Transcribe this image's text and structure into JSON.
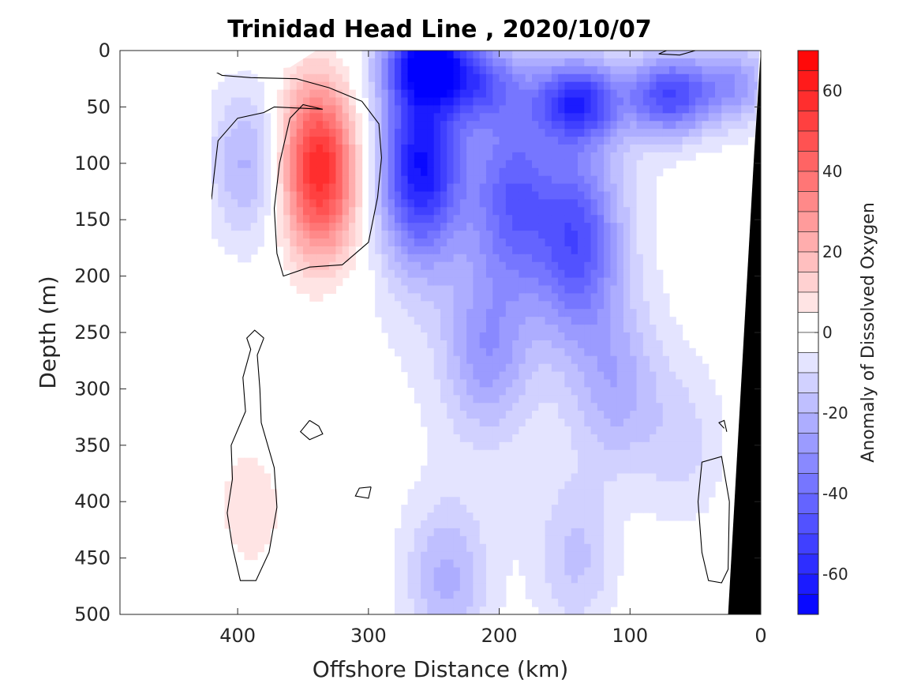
{
  "chart_data": {
    "type": "heatmap",
    "title": "Trinidad Head Line , 2020/10/07",
    "xlabel": "Offshore Distance (km)",
    "ylabel": "Depth (m)",
    "colorbar_label": "Anomaly of Dissolved Oxygen",
    "xlim": [
      490,
      0
    ],
    "ylim": [
      0,
      500
    ],
    "x_reversed": true,
    "y_reversed": true,
    "x_ticks": [
      400,
      300,
      200,
      100,
      0
    ],
    "y_ticks": [
      0,
      50,
      100,
      150,
      200,
      250,
      300,
      350,
      400,
      450,
      500
    ],
    "colorbar_range": [
      -70,
      70
    ],
    "colorbar_step": 5,
    "colorbar_ticks": [
      60,
      40,
      20,
      0,
      -20,
      -40,
      -60
    ],
    "colormap": {
      "negative": "#0000ff",
      "zero": "#ffffff",
      "positive": "#ff0000"
    },
    "data_extent_x": [
      420,
      0
    ],
    "bathymetry_color": "#000000",
    "features": [
      {
        "type": "max",
        "x": 340,
        "depth": 90,
        "value": 45
      },
      {
        "type": "max",
        "x": 335,
        "depth": 135,
        "value": 25
      },
      {
        "type": "max",
        "x": 390,
        "depth": 405,
        "value": 8
      },
      {
        "type": "min",
        "x": 260,
        "depth": 100,
        "value": -60
      },
      {
        "type": "min",
        "x": 255,
        "depth": 10,
        "value": -55
      },
      {
        "type": "min",
        "x": 140,
        "depth": 45,
        "value": -50
      },
      {
        "type": "min",
        "x": 70,
        "depth": 40,
        "value": -45
      },
      {
        "type": "min",
        "x": 140,
        "depth": 170,
        "value": -40
      },
      {
        "type": "min",
        "x": 190,
        "depth": 130,
        "value": -35
      },
      {
        "type": "min",
        "x": 390,
        "depth": 100,
        "value": -22
      },
      {
        "type": "min",
        "x": 215,
        "depth": 30,
        "value": -30
      },
      {
        "type": "min",
        "x": 20,
        "depth": 30,
        "value": -25
      },
      {
        "type": "min",
        "x": 210,
        "depth": 270,
        "value": -22
      },
      {
        "type": "min",
        "x": 240,
        "depth": 470,
        "value": -20
      },
      {
        "type": "min",
        "x": 110,
        "depth": 300,
        "value": -18
      },
      {
        "type": "min",
        "x": 140,
        "depth": 450,
        "value": -15
      },
      {
        "type": "min",
        "x": 60,
        "depth": 350,
        "value": -10
      },
      {
        "type": "max",
        "x": 50,
        "depth": 160,
        "value": 3
      },
      {
        "type": "max",
        "x": 110,
        "depth": 430,
        "value": 2
      }
    ]
  }
}
